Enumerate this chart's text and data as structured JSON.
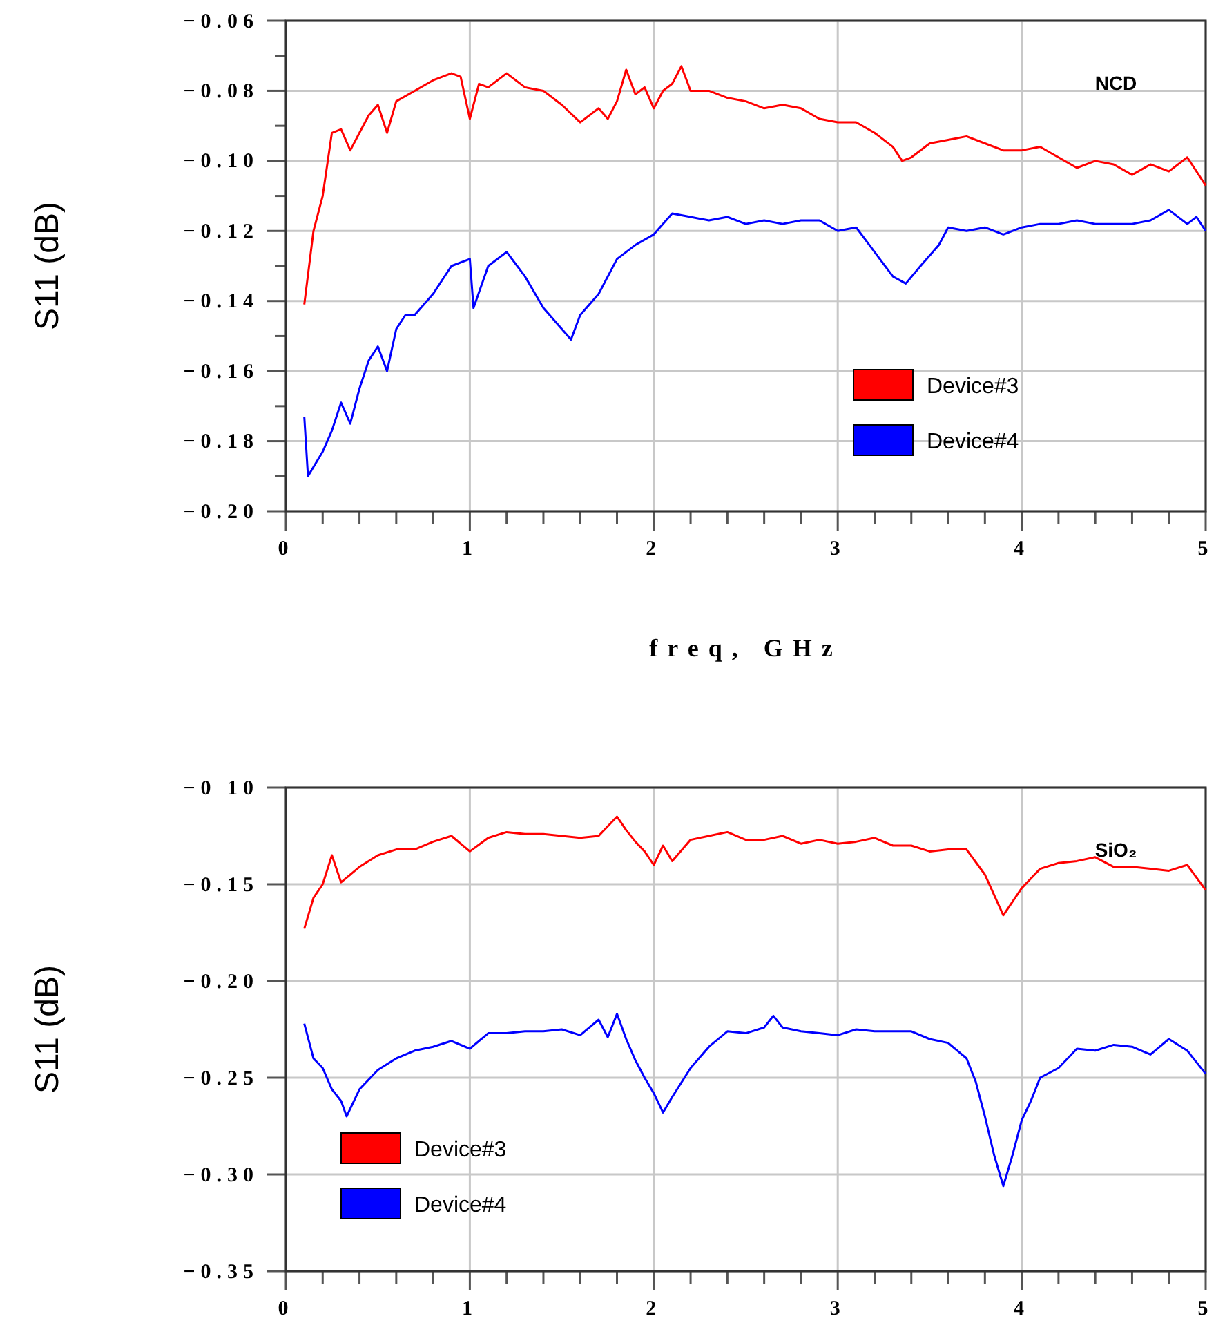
{
  "chart_data": [
    {
      "type": "line",
      "xlabel": "freq, GHz",
      "ylabel": "S11 (dB)",
      "annotations": [
        "NCD"
      ],
      "xlim": [
        0,
        5
      ],
      "ylim": [
        -0.2,
        -0.06
      ],
      "xticks": [
        0,
        {
          "value": 0.2,
          "label": null
        },
        {
          "value": 0.4,
          "label": null
        },
        {
          "value": 0.6,
          "label": null
        },
        {
          "value": 0.8,
          "label": null
        },
        1,
        {
          "value": 1.2,
          "label": null
        },
        {
          "value": 1.4,
          "label": null
        },
        {
          "value": 1.6,
          "label": null
        },
        {
          "value": 1.8,
          "label": null
        },
        2,
        {
          "value": 2.2,
          "label": null
        },
        {
          "value": 2.4,
          "label": null
        },
        {
          "value": 2.6,
          "label": null
        },
        {
          "value": 2.8,
          "label": null
        },
        3,
        {
          "value": 3.2,
          "label": null
        },
        {
          "value": 3.4,
          "label": null
        },
        {
          "value": 3.6,
          "label": null
        },
        {
          "value": 3.8,
          "label": null
        },
        4,
        {
          "value": 4.2,
          "label": null
        },
        {
          "value": 4.4,
          "label": null
        },
        {
          "value": 4.6,
          "label": null
        },
        {
          "value": 4.8,
          "label": null
        },
        5
      ],
      "yticks": [
        {
          "value": -0.2,
          "label": "−0.20"
        },
        {
          "value": -0.19,
          "label": null
        },
        {
          "value": -0.18,
          "label": "−0.18"
        },
        {
          "value": -0.17,
          "label": null
        },
        {
          "value": -0.16,
          "label": "−0.16"
        },
        {
          "value": -0.15,
          "label": null
        },
        {
          "value": -0.14,
          "label": "−0.14"
        },
        {
          "value": -0.13,
          "label": null
        },
        {
          "value": -0.12,
          "label": "−0.12"
        },
        {
          "value": -0.11,
          "label": null
        },
        {
          "value": -0.1,
          "label": "−0.10"
        },
        {
          "value": -0.09,
          "label": null
        },
        {
          "value": -0.08,
          "label": "−0.08"
        },
        {
          "value": -0.07,
          "label": null
        },
        {
          "value": -0.06,
          "label": "−0.06"
        }
      ],
      "grid": true,
      "legend": "right",
      "line_style": "solid",
      "marker": "none",
      "series": [
        {
          "name": "Device#3",
          "color": "#ff0000",
          "x": [
            0.1,
            0.15,
            0.2,
            0.25,
            0.3,
            0.35,
            0.4,
            0.45,
            0.5,
            0.55,
            0.6,
            0.7,
            0.8,
            0.9,
            0.95,
            1.0,
            1.05,
            1.1,
            1.2,
            1.3,
            1.4,
            1.5,
            1.6,
            1.7,
            1.75,
            1.8,
            1.85,
            1.9,
            1.95,
            2.0,
            2.05,
            2.1,
            2.15,
            2.2,
            2.3,
            2.4,
            2.5,
            2.6,
            2.7,
            2.8,
            2.9,
            3.0,
            3.1,
            3.2,
            3.3,
            3.35,
            3.4,
            3.5,
            3.6,
            3.7,
            3.8,
            3.9,
            4.0,
            4.1,
            4.2,
            4.3,
            4.4,
            4.5,
            4.6,
            4.7,
            4.8,
            4.9,
            5.0
          ],
          "values": [
            -0.141,
            -0.12,
            -0.11,
            -0.092,
            -0.091,
            -0.097,
            -0.092,
            -0.087,
            -0.084,
            -0.092,
            -0.083,
            -0.08,
            -0.077,
            -0.075,
            -0.076,
            -0.088,
            -0.078,
            -0.079,
            -0.075,
            -0.079,
            -0.08,
            -0.084,
            -0.089,
            -0.085,
            -0.088,
            -0.083,
            -0.074,
            -0.081,
            -0.079,
            -0.085,
            -0.08,
            -0.078,
            -0.073,
            -0.08,
            -0.08,
            -0.082,
            -0.083,
            -0.085,
            -0.084,
            -0.085,
            -0.088,
            -0.089,
            -0.089,
            -0.092,
            -0.096,
            -0.1,
            -0.099,
            -0.095,
            -0.094,
            -0.093,
            -0.095,
            -0.097,
            -0.097,
            -0.096,
            -0.099,
            -0.102,
            -0.1,
            -0.101,
            -0.104,
            -0.101,
            -0.103,
            -0.099,
            -0.107
          ]
        },
        {
          "name": "Device#4",
          "color": "#0000ff",
          "x": [
            0.1,
            0.12,
            0.2,
            0.25,
            0.3,
            0.35,
            0.4,
            0.45,
            0.5,
            0.55,
            0.6,
            0.65,
            0.7,
            0.8,
            0.85,
            0.9,
            1.0,
            1.02,
            1.1,
            1.2,
            1.3,
            1.4,
            1.5,
            1.55,
            1.6,
            1.7,
            1.8,
            1.9,
            2.0,
            2.1,
            2.2,
            2.3,
            2.4,
            2.5,
            2.6,
            2.7,
            2.8,
            2.9,
            3.0,
            3.1,
            3.2,
            3.3,
            3.37,
            3.45,
            3.55,
            3.6,
            3.7,
            3.8,
            3.9,
            4.0,
            4.1,
            4.2,
            4.3,
            4.4,
            4.5,
            4.6,
            4.7,
            4.8,
            4.9,
            4.95,
            5.0
          ],
          "values": [
            -0.173,
            -0.19,
            -0.183,
            -0.177,
            -0.169,
            -0.175,
            -0.165,
            -0.157,
            -0.153,
            -0.16,
            -0.148,
            -0.144,
            -0.144,
            -0.138,
            -0.134,
            -0.13,
            -0.128,
            -0.142,
            -0.13,
            -0.126,
            -0.133,
            -0.142,
            -0.148,
            -0.151,
            -0.144,
            -0.138,
            -0.128,
            -0.124,
            -0.121,
            -0.115,
            -0.116,
            -0.117,
            -0.116,
            -0.118,
            -0.117,
            -0.118,
            -0.117,
            -0.117,
            -0.12,
            -0.119,
            -0.126,
            -0.133,
            -0.135,
            -0.13,
            -0.124,
            -0.119,
            -0.12,
            -0.119,
            -0.121,
            -0.119,
            -0.118,
            -0.118,
            -0.117,
            -0.118,
            -0.118,
            -0.118,
            -0.117,
            -0.114,
            -0.118,
            -0.116,
            -0.12
          ]
        }
      ]
    },
    {
      "type": "line",
      "ylabel": "S11 (dB)",
      "annotations": [
        "SiO₂"
      ],
      "xlim": [
        0,
        5
      ],
      "ylim": [
        -0.35,
        -0.1
      ],
      "xticks": [
        0,
        {
          "value": 0.2,
          "label": null
        },
        {
          "value": 0.4,
          "label": null
        },
        {
          "value": 0.6,
          "label": null
        },
        {
          "value": 0.8,
          "label": null
        },
        1,
        {
          "value": 1.2,
          "label": null
        },
        {
          "value": 1.4,
          "label": null
        },
        {
          "value": 1.6,
          "label": null
        },
        {
          "value": 1.8,
          "label": null
        },
        2,
        {
          "value": 2.2,
          "label": null
        },
        {
          "value": 2.4,
          "label": null
        },
        {
          "value": 2.6,
          "label": null
        },
        {
          "value": 2.8,
          "label": null
        },
        3,
        {
          "value": 3.2,
          "label": null
        },
        {
          "value": 3.4,
          "label": null
        },
        {
          "value": 3.6,
          "label": null
        },
        {
          "value": 3.8,
          "label": null
        },
        4,
        {
          "value": 4.2,
          "label": null
        },
        {
          "value": 4.4,
          "label": null
        },
        {
          "value": 4.6,
          "label": null
        },
        {
          "value": 4.8,
          "label": null
        },
        5
      ],
      "yticks": [
        {
          "value": -0.35,
          "label": "−0.35"
        },
        {
          "value": -0.3,
          "label": "−0.30"
        },
        {
          "value": -0.25,
          "label": "−0.25"
        },
        {
          "value": -0.2,
          "label": "−0.20"
        },
        {
          "value": -0.15,
          "label": "−0.15"
        },
        {
          "value": -0.1,
          "label": "−0 10"
        }
      ],
      "grid": true,
      "legend": "bottom left",
      "line_style": "solid",
      "marker": "none",
      "series": [
        {
          "name": "Device#3",
          "color": "#ff0000",
          "x": [
            0.1,
            0.15,
            0.2,
            0.25,
            0.3,
            0.4,
            0.5,
            0.6,
            0.7,
            0.8,
            0.9,
            1.0,
            1.1,
            1.2,
            1.3,
            1.4,
            1.5,
            1.6,
            1.7,
            1.8,
            1.85,
            1.9,
            1.95,
            2.0,
            2.05,
            2.1,
            2.2,
            2.3,
            2.4,
            2.5,
            2.6,
            2.7,
            2.8,
            2.9,
            3.0,
            3.1,
            3.2,
            3.3,
            3.4,
            3.5,
            3.6,
            3.7,
            3.8,
            3.9,
            4.0,
            4.1,
            4.2,
            4.3,
            4.4,
            4.5,
            4.6,
            4.7,
            4.8,
            4.9,
            5.0
          ],
          "values": [
            -0.173,
            -0.157,
            -0.15,
            -0.135,
            -0.149,
            -0.141,
            -0.135,
            -0.132,
            -0.132,
            -0.128,
            -0.125,
            -0.133,
            -0.126,
            -0.123,
            -0.124,
            -0.124,
            -0.125,
            -0.126,
            -0.125,
            -0.115,
            -0.122,
            -0.128,
            -0.133,
            -0.14,
            -0.13,
            -0.138,
            -0.127,
            -0.125,
            -0.123,
            -0.127,
            -0.127,
            -0.125,
            -0.129,
            -0.127,
            -0.129,
            -0.128,
            -0.126,
            -0.13,
            -0.13,
            -0.133,
            -0.132,
            -0.132,
            -0.145,
            -0.166,
            -0.152,
            -0.142,
            -0.139,
            -0.138,
            -0.136,
            -0.141,
            -0.141,
            -0.142,
            -0.143,
            -0.14,
            -0.153
          ]
        },
        {
          "name": "Device#4",
          "color": "#0000ff",
          "x": [
            0.1,
            0.15,
            0.2,
            0.25,
            0.3,
            0.33,
            0.4,
            0.5,
            0.6,
            0.7,
            0.8,
            0.9,
            1.0,
            1.1,
            1.2,
            1.3,
            1.4,
            1.5,
            1.6,
            1.7,
            1.75,
            1.8,
            1.85,
            1.9,
            1.95,
            2.0,
            2.05,
            2.1,
            2.2,
            2.3,
            2.4,
            2.5,
            2.6,
            2.65,
            2.7,
            2.8,
            2.9,
            3.0,
            3.1,
            3.2,
            3.3,
            3.4,
            3.5,
            3.6,
            3.7,
            3.75,
            3.8,
            3.85,
            3.9,
            3.95,
            4.0,
            4.05,
            4.1,
            4.2,
            4.3,
            4.4,
            4.5,
            4.6,
            4.7,
            4.8,
            4.9,
            5.0
          ],
          "values": [
            -0.222,
            -0.24,
            -0.245,
            -0.256,
            -0.262,
            -0.27,
            -0.256,
            -0.246,
            -0.24,
            -0.236,
            -0.234,
            -0.231,
            -0.235,
            -0.227,
            -0.227,
            -0.226,
            -0.226,
            -0.225,
            -0.228,
            -0.22,
            -0.229,
            -0.217,
            -0.23,
            -0.241,
            -0.25,
            -0.258,
            -0.268,
            -0.26,
            -0.245,
            -0.234,
            -0.226,
            -0.227,
            -0.224,
            -0.218,
            -0.224,
            -0.226,
            -0.227,
            -0.228,
            -0.225,
            -0.226,
            -0.226,
            -0.226,
            -0.23,
            -0.232,
            -0.24,
            -0.252,
            -0.27,
            -0.29,
            -0.306,
            -0.29,
            -0.272,
            -0.262,
            -0.25,
            -0.245,
            -0.235,
            -0.236,
            -0.233,
            -0.234,
            -0.238,
            -0.23,
            -0.236,
            -0.248
          ]
        }
      ]
    }
  ]
}
